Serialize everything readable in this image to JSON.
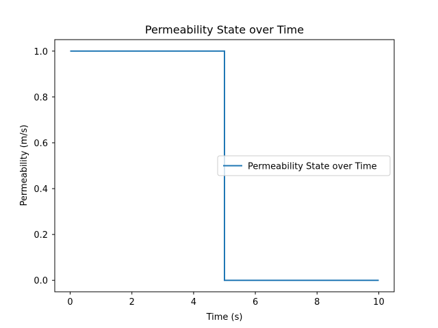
{
  "chart_data": {
    "type": "line",
    "title": "Permeability State over Time",
    "xlabel": "Time (s)",
    "ylabel": "Permeability (m/s)",
    "xlim": [
      -0.5,
      10.5
    ],
    "ylim": [
      -0.05,
      1.05
    ],
    "xticks": [
      0,
      2,
      4,
      6,
      8,
      10
    ],
    "yticks": [
      0.0,
      0.2,
      0.4,
      0.6,
      0.8,
      1.0
    ],
    "xtick_labels": [
      "0",
      "2",
      "4",
      "6",
      "8",
      "10"
    ],
    "ytick_labels": [
      "0.0",
      "0.2",
      "0.4",
      "0.6",
      "0.8",
      "1.0"
    ],
    "grid": false,
    "legend_position": "center-right",
    "series": [
      {
        "name": "Permeability State over Time",
        "color": "#1f77b4",
        "x": [
          0,
          5,
          5,
          10
        ],
        "y": [
          1.0,
          1.0,
          0.0,
          0.0
        ]
      }
    ]
  }
}
